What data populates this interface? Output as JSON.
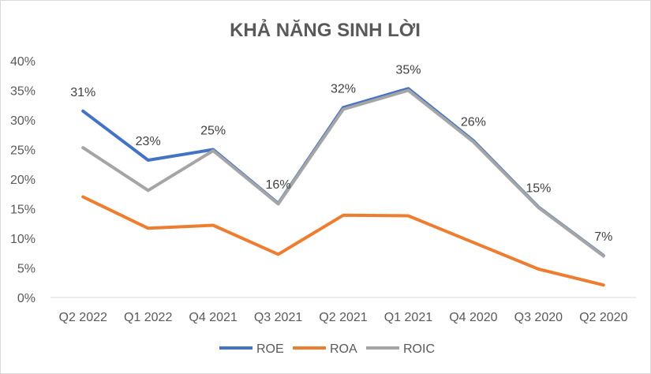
{
  "chart_data": {
    "type": "line",
    "title": "KHẢ NĂNG SINH LỜI",
    "categories": [
      "Q2 2022",
      "Q1 2022",
      "Q4 2021",
      "Q3 2021",
      "Q2 2021",
      "Q1 2021",
      "Q4 2020",
      "Q3 2020",
      "Q2 2020"
    ],
    "ylim": [
      0,
      40
    ],
    "yticks": [
      0,
      5,
      10,
      15,
      20,
      25,
      30,
      35,
      40
    ],
    "ytick_labels": [
      "0%",
      "5%",
      "10%",
      "15%",
      "20%",
      "25%",
      "30%",
      "35%",
      "40%"
    ],
    "grid": false,
    "legend_position": "bottom",
    "series": [
      {
        "name": "ROE",
        "color": "#4472C4",
        "values": [
          31.5,
          23.2,
          25.0,
          15.9,
          32.1,
          35.3,
          26.5,
          15.3,
          7.1
        ]
      },
      {
        "name": "ROA",
        "color": "#ED7D31",
        "values": [
          17.0,
          11.7,
          12.2,
          7.3,
          13.9,
          13.8,
          9.3,
          4.8,
          2.1
        ]
      },
      {
        "name": "ROIC",
        "color": "#A5A5A5",
        "values": [
          25.3,
          18.1,
          24.8,
          15.8,
          31.8,
          35.0,
          26.3,
          15.2,
          7.0
        ]
      }
    ],
    "data_labels": [
      "31%",
      "23%",
      "25%",
      "16%",
      "32%",
      "35%",
      "26%",
      "15%",
      "7%"
    ]
  }
}
